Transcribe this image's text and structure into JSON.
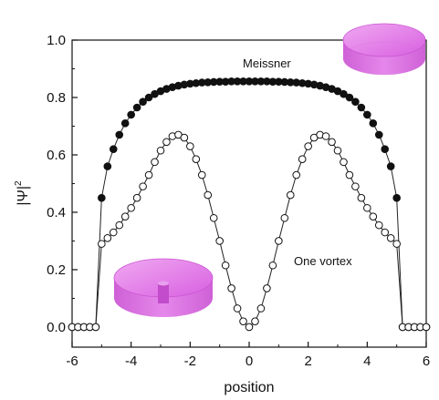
{
  "chart_data": {
    "type": "scatter",
    "xlabel": "position",
    "ylabel": "|Ψ|",
    "ylabel_sup": "2",
    "xlim": [
      -6,
      6
    ],
    "ylim": [
      -0.07,
      1.0
    ],
    "xticks": [
      -6,
      -4,
      -2,
      0,
      2,
      4,
      6
    ],
    "yticks": [
      0.0,
      0.2,
      0.4,
      0.6,
      0.8,
      1.0
    ],
    "ytick_labels": [
      "0.0",
      "0.2",
      "0.4",
      "0.6",
      "0.8",
      "1.0"
    ],
    "grid": false,
    "series": [
      {
        "name": "Meissner",
        "marker": "filled-circle",
        "x": [
          -6.0,
          -5.8,
          -5.6,
          -5.4,
          -5.2,
          -5.0,
          -4.8,
          -4.6,
          -4.4,
          -4.2,
          -4.0,
          -3.8,
          -3.6,
          -3.4,
          -3.2,
          -3.0,
          -2.8,
          -2.6,
          -2.4,
          -2.2,
          -2.0,
          -1.8,
          -1.6,
          -1.4,
          -1.2,
          -1.0,
          -0.8,
          -0.6,
          -0.4,
          -0.2,
          0.0,
          0.2,
          0.4,
          0.6,
          0.8,
          1.0,
          1.2,
          1.4,
          1.6,
          1.8,
          2.0,
          2.2,
          2.4,
          2.6,
          2.8,
          3.0,
          3.2,
          3.4,
          3.6,
          3.8,
          4.0,
          4.2,
          4.4,
          4.6,
          4.8,
          5.0,
          5.2,
          5.4,
          5.6,
          5.8,
          6.0
        ],
        "y": [
          0.0,
          0.0,
          0.0,
          0.0,
          0.0,
          0.45,
          0.56,
          0.62,
          0.67,
          0.71,
          0.74,
          0.765,
          0.785,
          0.8,
          0.812,
          0.822,
          0.83,
          0.836,
          0.841,
          0.845,
          0.848,
          0.85,
          0.852,
          0.853,
          0.854,
          0.855,
          0.855,
          0.856,
          0.856,
          0.856,
          0.856,
          0.856,
          0.856,
          0.856,
          0.855,
          0.855,
          0.854,
          0.853,
          0.852,
          0.85,
          0.848,
          0.845,
          0.841,
          0.836,
          0.83,
          0.822,
          0.812,
          0.8,
          0.785,
          0.765,
          0.74,
          0.71,
          0.67,
          0.62,
          0.56,
          0.45,
          0.0,
          0.0,
          0.0,
          0.0,
          0.0
        ]
      },
      {
        "name": "One vortex",
        "marker": "open-circle",
        "x": [
          -6.0,
          -5.8,
          -5.6,
          -5.4,
          -5.2,
          -5.0,
          -4.8,
          -4.6,
          -4.4,
          -4.2,
          -4.0,
          -3.8,
          -3.6,
          -3.4,
          -3.2,
          -3.0,
          -2.8,
          -2.6,
          -2.4,
          -2.2,
          -2.0,
          -1.8,
          -1.6,
          -1.4,
          -1.2,
          -1.0,
          -0.8,
          -0.6,
          -0.4,
          -0.2,
          0.0,
          0.2,
          0.4,
          0.6,
          0.8,
          1.0,
          1.2,
          1.4,
          1.6,
          1.8,
          2.0,
          2.2,
          2.4,
          2.6,
          2.8,
          3.0,
          3.2,
          3.4,
          3.6,
          3.8,
          4.0,
          4.2,
          4.4,
          4.6,
          4.8,
          5.0,
          5.2,
          5.4,
          5.6,
          5.8,
          6.0
        ],
        "y": [
          0.0,
          0.0,
          0.0,
          0.0,
          0.0,
          0.29,
          0.31,
          0.33,
          0.355,
          0.385,
          0.415,
          0.45,
          0.49,
          0.53,
          0.575,
          0.615,
          0.645,
          0.665,
          0.67,
          0.66,
          0.63,
          0.585,
          0.53,
          0.46,
          0.38,
          0.3,
          0.215,
          0.135,
          0.065,
          0.02,
          0.0,
          0.02,
          0.065,
          0.135,
          0.215,
          0.3,
          0.38,
          0.46,
          0.53,
          0.585,
          0.63,
          0.66,
          0.67,
          0.665,
          0.645,
          0.615,
          0.575,
          0.53,
          0.49,
          0.45,
          0.415,
          0.385,
          0.355,
          0.33,
          0.31,
          0.29,
          0.0,
          0.0,
          0.0,
          0.0,
          0.0
        ]
      }
    ],
    "annotations": [
      {
        "text": "Meissner",
        "x": 0.6,
        "y": 0.905
      },
      {
        "text": "One vortex",
        "x": 2.5,
        "y": 0.215
      }
    ],
    "insets": [
      {
        "name": "meissner-disk",
        "description_icon": "solid-disk-icon",
        "color": "#e066e6"
      },
      {
        "name": "vortex-disk",
        "description_icon": "disk-with-vortex-icon",
        "color": "#e066e6"
      }
    ]
  }
}
